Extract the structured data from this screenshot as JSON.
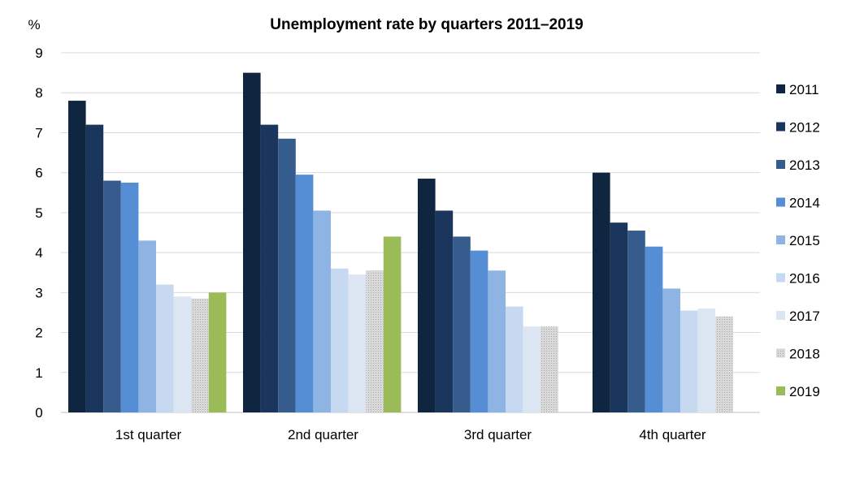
{
  "chart_data": {
    "type": "bar",
    "title": "Unemployment rate by quarters 2011–2019",
    "ylabel": "%",
    "xlabel": "",
    "ylim": [
      0,
      9
    ],
    "yticks": [
      "0",
      "1",
      "2",
      "3",
      "4",
      "5",
      "6",
      "7",
      "8",
      "9"
    ],
    "grid": true,
    "legend_position": "right",
    "categories": [
      "1st quarter",
      "2nd quarter",
      "3rd quarter",
      "4th quarter"
    ],
    "series": [
      {
        "name": "2011",
        "color": "#10253f",
        "values": [
          7.8,
          8.5,
          5.85,
          6.0
        ]
      },
      {
        "name": "2012",
        "color": "#1b365d",
        "values": [
          7.2,
          7.2,
          5.05,
          4.75
        ]
      },
      {
        "name": "2013",
        "color": "#355c8c",
        "values": [
          5.8,
          6.85,
          4.4,
          4.55
        ]
      },
      {
        "name": "2014",
        "color": "#558ed5",
        "values": [
          5.75,
          5.95,
          4.05,
          4.15
        ]
      },
      {
        "name": "2015",
        "color": "#8eb4e3",
        "values": [
          4.3,
          5.05,
          3.55,
          3.1
        ]
      },
      {
        "name": "2016",
        "color": "#c6d9f1",
        "values": [
          3.2,
          3.6,
          2.65,
          2.55
        ]
      },
      {
        "name": "2017",
        "color": "#dce6f2",
        "values": [
          2.9,
          3.45,
          2.15,
          2.6
        ]
      },
      {
        "name": "2018",
        "color": "#d9d9d9",
        "pattern": "dotted",
        "values": [
          2.85,
          3.55,
          2.15,
          2.4
        ]
      },
      {
        "name": "2019",
        "color": "#9bbb59",
        "values": [
          3.0,
          4.4,
          null,
          null
        ]
      }
    ]
  }
}
